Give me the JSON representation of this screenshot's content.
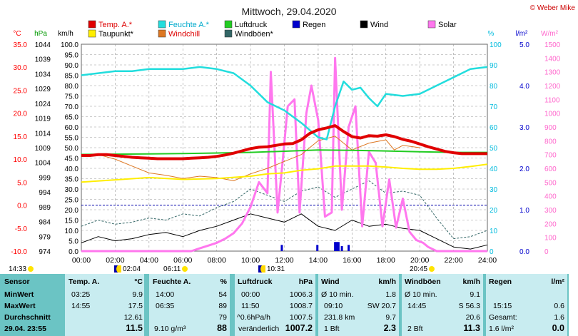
{
  "page": {
    "title": "Mittwoch, 29.04.2020",
    "copyright": "© Weber Mike",
    "title_color": "#222222"
  },
  "units": {
    "temp": "°C",
    "pressure": "hPa",
    "wind": "km/h",
    "humidity": "%",
    "rain": "l/m²",
    "solar": "W/m²"
  },
  "legend": [
    {
      "label": "Temp. A.*",
      "color": "#e00000"
    },
    {
      "label": "Feuchte A.*",
      "color": "#22dddd"
    },
    {
      "label": "Luftdruck",
      "color": "#22cc22"
    },
    {
      "label": "Regen",
      "color": "#0000cc"
    },
    {
      "label": "Wind",
      "color": "#000000"
    },
    {
      "label": "Solar",
      "color": "#ff77ee"
    },
    {
      "label": "Taupunkt*",
      "color": "#ffee00"
    },
    {
      "label": "Windchill",
      "color": "#dd7722"
    },
    {
      "label": "Windböen*",
      "color": "#336666"
    }
  ],
  "axes": {
    "temp_ticks": [
      "35.0",
      "30.0",
      "25.0",
      "20.0",
      "15.0",
      "10.0",
      "5.0",
      "0.0",
      "-5.0",
      "-10.0"
    ],
    "pressure_ticks": [
      "1044",
      "1039",
      "1034",
      "1029",
      "1024",
      "1019",
      "1014",
      "1009",
      "1004",
      "999",
      "994",
      "989",
      "984",
      "979",
      "974"
    ],
    "wind_ticks": [
      "100.0",
      "95.0",
      "90.0",
      "85.0",
      "80.0",
      "75.0",
      "70.0",
      "65.0",
      "60.0",
      "55.0",
      "50.0",
      "45.0",
      "40.0",
      "35.0",
      "30.0",
      "25.0",
      "20.0",
      "15.0",
      "10.0",
      "5.0",
      "0.0"
    ],
    "humidity_ticks": [
      "100",
      "90",
      "80",
      "70",
      "60",
      "50",
      "40",
      "30",
      "20",
      "10",
      "0"
    ],
    "rain_ticks": [
      "5.0",
      "4.0",
      "3.0",
      "2.0",
      "1.0",
      "0.0"
    ],
    "solar_ticks": [
      "1500",
      "1400",
      "1300",
      "1200",
      "1100",
      "1000",
      "900",
      "800",
      "700",
      "600",
      "500",
      "400",
      "300",
      "200",
      "100",
      "0"
    ],
    "x_ticks": [
      "00:00",
      "02:00",
      "04:00",
      "06:00",
      "08:00",
      "10:00",
      "12:00",
      "14:00",
      "16:00",
      "18:00",
      "20:00",
      "22:00",
      "24:00"
    ],
    "colors": {
      "temp": "#ff0000",
      "humidity": "#00bbdd",
      "rain": "#0000cc",
      "solar": "#ff66cc"
    }
  },
  "events": {
    "sunrise": "06:11",
    "sunset": "20:45",
    "moonrise": "10:31",
    "moonset": "02:04",
    "moon_phase_time": "14:33"
  },
  "chart_data": {
    "type": "line",
    "x_unit": "hours",
    "xlim": [
      0,
      24
    ],
    "series": [
      {
        "name": "Temp. A.*",
        "unit": "°C",
        "ylim": [
          -10,
          35
        ],
        "x": [
          0,
          0.5,
          1,
          1.5,
          2,
          2.5,
          3,
          3.5,
          4,
          4.5,
          5,
          5.5,
          6,
          6.5,
          7,
          7.5,
          8,
          8.5,
          9,
          9.5,
          10,
          10.5,
          11,
          11.5,
          12,
          12.5,
          13,
          13.5,
          14,
          14.5,
          15,
          15.5,
          16,
          16.5,
          17,
          17.5,
          18,
          18.5,
          19,
          19.5,
          20,
          20.5,
          21,
          21.5,
          22,
          22.5,
          23,
          23.5,
          24
        ],
        "y": [
          10.8,
          10.8,
          11.0,
          11.0,
          10.8,
          10.6,
          10.4,
          10.3,
          10.2,
          10.1,
          10.1,
          10.1,
          10.1,
          10.2,
          10.3,
          10.4,
          10.6,
          10.9,
          11.3,
          11.8,
          12.3,
          12.6,
          12.7,
          13.0,
          13.3,
          13.4,
          14.2,
          15.6,
          16.4,
          16.8,
          17.3,
          16.0,
          14.9,
          14.6,
          15.1,
          15.0,
          15.3,
          14.9,
          14.3,
          13.9,
          13.3,
          12.7,
          12.2,
          11.7,
          11.4,
          11.2,
          11.2,
          11.2,
          11.2
        ]
      },
      {
        "name": "Taupunkt*",
        "unit": "°C",
        "ylim": [
          -10,
          35
        ],
        "x": [
          0,
          2,
          4,
          6,
          8,
          10,
          11,
          12,
          13,
          14,
          15,
          16,
          17,
          18,
          19,
          20,
          21,
          22,
          23,
          24
        ],
        "y": [
          5.0,
          5.5,
          6.0,
          5.6,
          5.8,
          6.3,
          6.8,
          7.0,
          7.6,
          7.9,
          8.5,
          8.5,
          8.5,
          8.3,
          8.0,
          7.8,
          7.8,
          8.0,
          8.4,
          8.9
        ]
      },
      {
        "name": "Windchill",
        "unit": "°C",
        "ylim": [
          -10,
          35
        ],
        "x": [
          0,
          1,
          2,
          3,
          4,
          5,
          6,
          7,
          8,
          9,
          10,
          11,
          12,
          13,
          14,
          15,
          15.5,
          16,
          17,
          18,
          18.5,
          19,
          20
        ],
        "y": [
          10.8,
          11.0,
          10.0,
          8.5,
          7.0,
          6.5,
          5.8,
          6.3,
          6.0,
          5.3,
          6.8,
          8.0,
          9.5,
          11.0,
          14.0,
          15.0,
          13.5,
          12.0,
          13.5,
          14.2,
          12.0,
          13.0,
          12.5
        ]
      },
      {
        "name": "Feuchte A.*",
        "unit": "%",
        "ylim": [
          0,
          100
        ],
        "x": [
          0,
          1,
          2,
          3,
          4,
          5,
          6,
          7,
          8,
          9,
          10,
          11,
          12,
          13,
          14,
          14.5,
          15,
          15.5,
          16,
          16.5,
          17,
          17.5,
          18,
          19,
          20,
          21,
          22,
          23,
          24
        ],
        "y": [
          85,
          86,
          87,
          87,
          88,
          88,
          88,
          89,
          88,
          86,
          80,
          72,
          68,
          62,
          55,
          54,
          70,
          82,
          78,
          79,
          74,
          70,
          76,
          75,
          76,
          80,
          84,
          88,
          89
        ]
      },
      {
        "name": "Luftdruck",
        "unit": "hPa",
        "ylim": [
          974,
          1044
        ],
        "x": [
          0,
          2,
          4,
          6,
          8,
          10,
          12,
          14,
          16,
          18,
          20,
          22,
          24
        ],
        "y": [
          1006.7,
          1006.8,
          1006.9,
          1007.0,
          1007.2,
          1007.4,
          1007.8,
          1008.2,
          1008.1,
          1007.9,
          1007.6,
          1007.4,
          1007.4
        ]
      },
      {
        "name": "Wind",
        "unit": "km/h",
        "ylim": [
          0,
          100
        ],
        "x": [
          0,
          1,
          2,
          3,
          4,
          5,
          6,
          7,
          8,
          9,
          10,
          11,
          12,
          13,
          14,
          15,
          16,
          17,
          18,
          19,
          20,
          21,
          22,
          23,
          24
        ],
        "y": [
          4,
          7,
          5,
          6,
          8,
          9,
          7,
          10,
          12,
          15,
          18,
          16,
          14,
          18,
          12,
          10,
          15,
          12,
          13,
          11,
          10,
          6,
          2,
          1,
          3
        ]
      },
      {
        "name": "Windböen*",
        "unit": "km/h",
        "ylim": [
          0,
          100
        ],
        "x": [
          0,
          1,
          2,
          3,
          4,
          5,
          6,
          7,
          8,
          9,
          10,
          11,
          12,
          13,
          14,
          15,
          16,
          17,
          18,
          19,
          20,
          21,
          22,
          23,
          24
        ],
        "y": [
          12,
          15,
          13,
          14,
          16,
          15,
          18,
          17,
          21,
          24,
          30,
          27,
          24,
          29,
          31,
          26,
          30,
          34,
          28,
          29,
          27,
          16,
          6,
          7,
          10
        ]
      },
      {
        "name": "Solar",
        "unit": "W/m²",
        "ylim": [
          0,
          1500
        ],
        "x": [
          0,
          6.5,
          7,
          7.5,
          8,
          8.5,
          9,
          9.5,
          10,
          10.5,
          11,
          11.2,
          11.6,
          11.9,
          12.2,
          12.6,
          12.9,
          13.3,
          13.6,
          14,
          14.4,
          14.8,
          15,
          15.4,
          15.8,
          16.2,
          16.6,
          17,
          17.4,
          17.8,
          18.2,
          18.6,
          19,
          19.4,
          19.8,
          20.2,
          20.5,
          21,
          24
        ],
        "y": [
          0,
          0,
          20,
          40,
          60,
          90,
          130,
          200,
          320,
          500,
          420,
          1300,
          280,
          650,
          1050,
          1100,
          280,
          1000,
          1200,
          950,
          250,
          280,
          1400,
          300,
          900,
          1050,
          180,
          720,
          640,
          180,
          520,
          170,
          380,
          140,
          80,
          60,
          30,
          0,
          0
        ]
      },
      {
        "name": "Regen",
        "unit": "l/m²",
        "ylim": [
          0,
          5
        ],
        "x": [
          11.85,
          13.95,
          15.0,
          15.1,
          15.2,
          15.4,
          15.8
        ],
        "y": [
          0.15,
          0.15,
          0.22,
          0.22,
          0.22,
          0.12,
          0.15
        ]
      }
    ]
  },
  "table": {
    "headers": {
      "sensor": "Sensor",
      "temp": "Temp. A.",
      "temp_unit": "°C",
      "hum": "Feuchte A.",
      "hum_unit": "%",
      "press": "Luftdruck",
      "press_unit": "hPa",
      "wind": "Wind",
      "wind_unit": "km/h",
      "gust": "Windböen",
      "gust_unit": "km/h",
      "rain": "Regen",
      "rain_unit": "l/m²"
    },
    "rows": [
      {
        "label": "MinWert",
        "temp_time": "03:25",
        "temp_val": "9.9",
        "hum_time": "14:00",
        "hum_val": "54",
        "press_time": "00:00",
        "press_val": "1006.3",
        "wind_a": "Ø 10 min.",
        "wind_val": "1.8",
        "gust_a": "Ø 10 min.",
        "gust_val": "9.1",
        "rain_a": "",
        "rain_val": ""
      },
      {
        "label": "MaxWert",
        "temp_time": "14:55",
        "temp_val": "17.5",
        "hum_time": "06:35",
        "hum_val": "89",
        "press_time": "11:50",
        "press_val": "1008.7",
        "wind_a": "09:10",
        "wind_val": "SW 20.7",
        "gust_a": "14:45",
        "gust_val": "S 56.3",
        "rain_a": "15:15",
        "rain_val": "0.6"
      },
      {
        "label": "Durchschnitt",
        "temp_time": "",
        "temp_val": "12.61",
        "hum_time": "",
        "hum_val": "79",
        "press_time": "^0.6hPa/h",
        "press_val": "1007.5",
        "wind_a": "231.8 km",
        "wind_val": "9.7",
        "gust_a": "",
        "gust_val": "20.6",
        "rain_a": "Gesamt:",
        "rain_val": "1.6"
      },
      {
        "label": "29.04. 23:55",
        "temp_time": "",
        "temp_val": "11.5",
        "hum_time": "9.10 g/m³",
        "hum_val": "88",
        "press_time": "veränderlich",
        "press_val": "1007.2",
        "wind_a": "1 Bft",
        "wind_val": "2.3",
        "gust_a": "2 Bft",
        "gust_val": "11.3",
        "rain_a": "1.6 l/m²",
        "rain_val": "0.0"
      }
    ]
  }
}
